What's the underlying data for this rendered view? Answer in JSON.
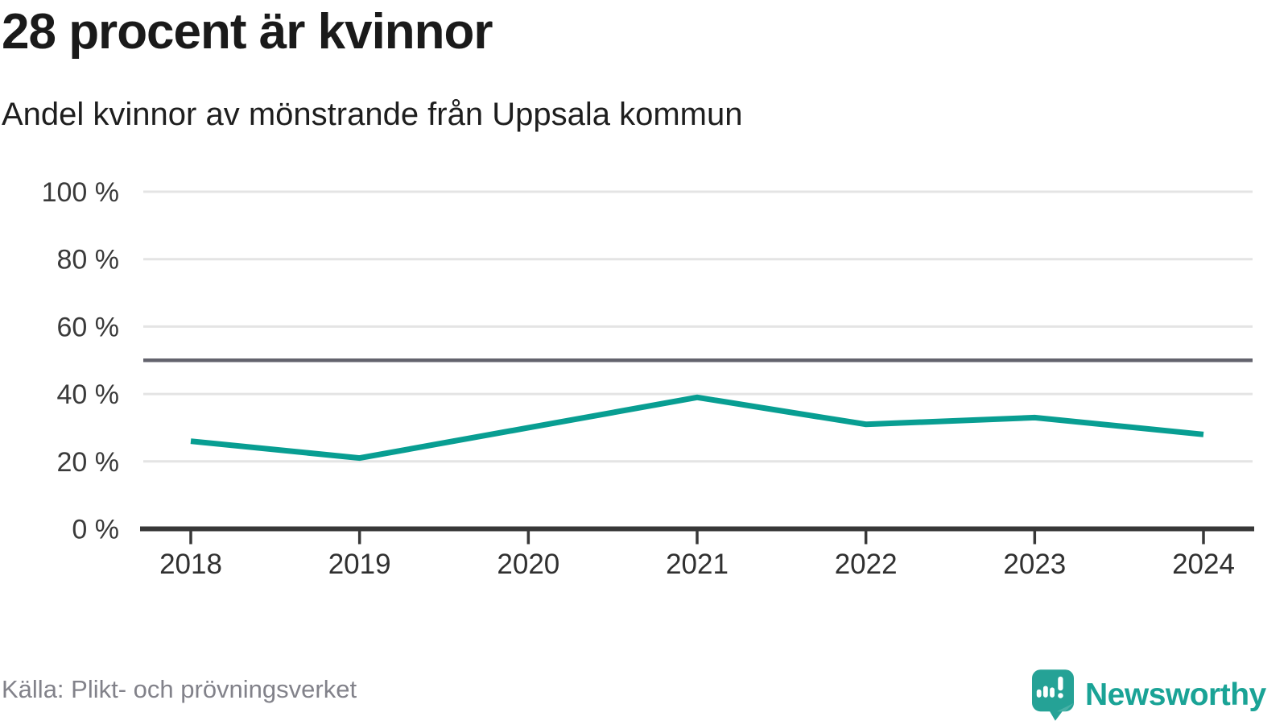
{
  "header": {
    "title": "28 procent är kvinnor",
    "subtitle": "Andel kvinnor av mönstrande från Uppsala kommun"
  },
  "footer": {
    "source": "Källa: Plikt- och prövningsverket",
    "brand": "Newsworthy"
  },
  "chart_data": {
    "type": "line",
    "title": "28 procent är kvinnor",
    "subtitle": "Andel kvinnor av mönstrande från Uppsala kommun",
    "x": [
      "2018",
      "2019",
      "2020",
      "2021",
      "2022",
      "2023",
      "2024"
    ],
    "series": [
      {
        "name": "Andel kvinnor av mönstrande",
        "values": [
          26,
          21,
          30,
          39,
          31,
          33,
          28
        ]
      }
    ],
    "unit": "%",
    "ylim": [
      0,
      100
    ],
    "yticks": [
      {
        "v": 0,
        "label": "0 %"
      },
      {
        "v": 20,
        "label": "20 %"
      },
      {
        "v": 40,
        "label": "40 %"
      },
      {
        "v": 60,
        "label": "60 %"
      },
      {
        "v": 80,
        "label": "80 %"
      },
      {
        "v": 100,
        "label": "100 %"
      }
    ],
    "reference_line": 50,
    "grid": true,
    "legend": "none",
    "colors": {
      "line": "#089e92",
      "reference": "#63636d",
      "grid": "#e4e4e4",
      "axis": "#383838",
      "y_tick_label": "#3a3a3a",
      "x_tick_label": "#303030"
    }
  }
}
